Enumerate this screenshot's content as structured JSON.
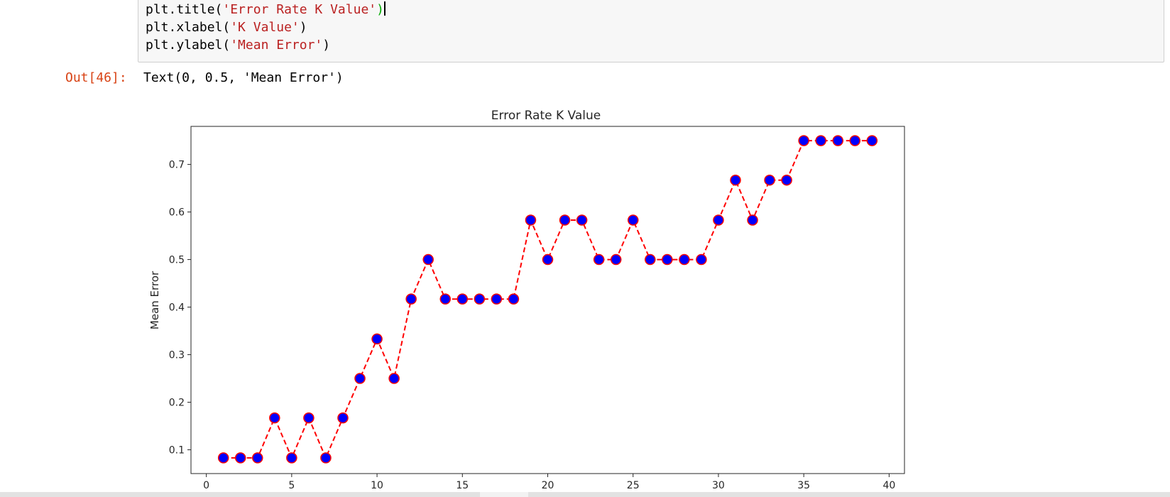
{
  "code_cell": {
    "lines": [
      {
        "pre": "plt.title(",
        "str": "'Error Rate K Value'",
        "post": ")",
        "highlight_parens": true,
        "cursor": true
      },
      {
        "pre": "plt.xlabel(",
        "str": "'K Value'",
        "post": ")",
        "highlight_parens": false,
        "cursor": false
      },
      {
        "pre": "plt.ylabel(",
        "str": "'Mean Error'",
        "post": ")",
        "highlight_parens": false,
        "cursor": false
      }
    ]
  },
  "output": {
    "prompt": "Out[46]:",
    "text": "Text(0, 0.5, 'Mean Error')"
  },
  "chart_data": {
    "type": "line",
    "title": "Error Rate K Value",
    "xlabel": "",
    "ylabel": "Mean Error",
    "xlim": [
      -0.9,
      40.9
    ],
    "ylim": [
      0.05,
      0.78
    ],
    "xticks": [
      0,
      5,
      10,
      15,
      20,
      25,
      30,
      35,
      40
    ],
    "yticks": [
      0.1,
      0.2,
      0.3,
      0.4,
      0.5,
      0.6,
      0.7
    ],
    "grid": false,
    "line_color": "#ff0000",
    "line_style": "dashed",
    "marker_face": "#0000ff",
    "marker_edge": "#ff0000",
    "x": [
      1,
      2,
      3,
      4,
      5,
      6,
      7,
      8,
      9,
      10,
      11,
      12,
      13,
      14,
      15,
      16,
      17,
      18,
      19,
      20,
      21,
      22,
      23,
      24,
      25,
      26,
      27,
      28,
      29,
      30,
      31,
      32,
      33,
      34,
      35,
      36,
      37,
      38,
      39
    ],
    "values": [
      0.083,
      0.083,
      0.083,
      0.167,
      0.083,
      0.167,
      0.083,
      0.167,
      0.25,
      0.333,
      0.25,
      0.417,
      0.5,
      0.417,
      0.417,
      0.417,
      0.417,
      0.417,
      0.583,
      0.5,
      0.583,
      0.583,
      0.5,
      0.5,
      0.583,
      0.5,
      0.5,
      0.5,
      0.5,
      0.583,
      0.667,
      0.583,
      0.667,
      0.667,
      0.75,
      0.75,
      0.75,
      0.75,
      0.75
    ]
  }
}
